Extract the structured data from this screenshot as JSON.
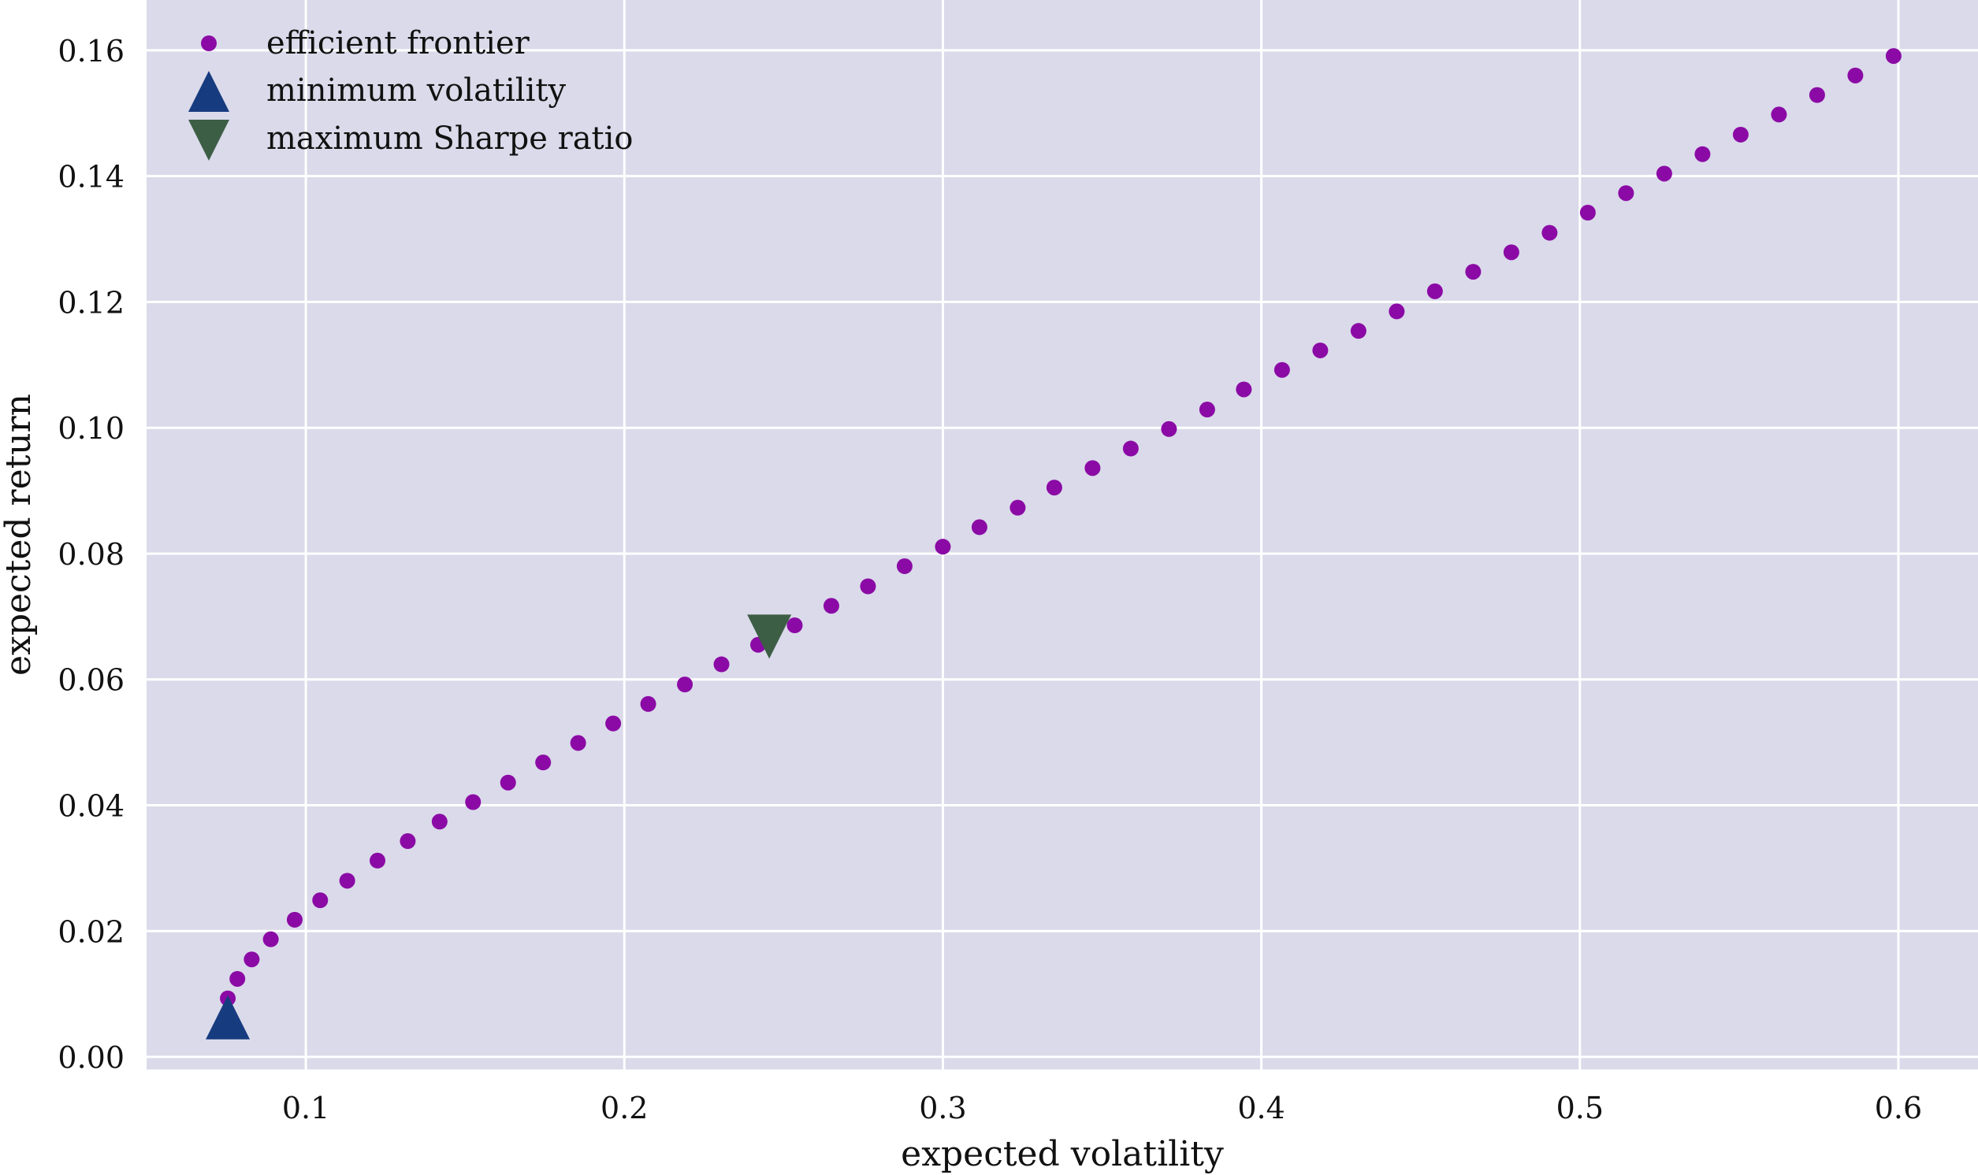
{
  "chart_data": {
    "type": "scatter",
    "title": "",
    "xlabel": "expected volatility",
    "ylabel": "expected return",
    "xlim": [
      0.05,
      0.625
    ],
    "ylim": [
      -0.002,
      0.168
    ],
    "xticks": [
      0.1,
      0.2,
      0.3,
      0.4,
      0.5,
      0.6
    ],
    "xtick_labels": [
      "0.1",
      "0.2",
      "0.3",
      "0.4",
      "0.5",
      "0.6"
    ],
    "yticks": [
      0.0,
      0.02,
      0.04,
      0.06,
      0.08,
      0.1,
      0.12,
      0.14,
      0.16
    ],
    "ytick_labels": [
      "0.00",
      "0.02",
      "0.04",
      "0.06",
      "0.08",
      "0.10",
      "0.12",
      "0.14",
      "0.16"
    ],
    "grid": true,
    "legend_position": "top-left",
    "colors": {
      "background": "#dadaea",
      "grid": "#ffffff",
      "frontier": "#8b0aa5",
      "min_vol": "#173b7f",
      "max_sharpe": "#3c5e45"
    },
    "series": [
      {
        "name": "efficient frontier",
        "marker": "circle",
        "points": [
          [
            0.0755,
            0.0093
          ],
          [
            0.0785,
            0.0124
          ],
          [
            0.083,
            0.0155
          ],
          [
            0.089,
            0.0187
          ],
          [
            0.0965,
            0.0218
          ],
          [
            0.1045,
            0.0249
          ],
          [
            0.113,
            0.028
          ],
          [
            0.1225,
            0.0312
          ],
          [
            0.132,
            0.0343
          ],
          [
            0.142,
            0.0374
          ],
          [
            0.1525,
            0.0405
          ],
          [
            0.1635,
            0.0436
          ],
          [
            0.1745,
            0.0468
          ],
          [
            0.1855,
            0.0499
          ],
          [
            0.1965,
            0.053
          ],
          [
            0.2075,
            0.0561
          ],
          [
            0.219,
            0.0592
          ],
          [
            0.2305,
            0.0624
          ],
          [
            0.242,
            0.0655
          ],
          [
            0.2535,
            0.0686
          ],
          [
            0.265,
            0.0717
          ],
          [
            0.2765,
            0.0748
          ],
          [
            0.288,
            0.078
          ],
          [
            0.3,
            0.0811
          ],
          [
            0.3115,
            0.0842
          ],
          [
            0.3235,
            0.0873
          ],
          [
            0.335,
            0.0905
          ],
          [
            0.347,
            0.0936
          ],
          [
            0.359,
            0.0967
          ],
          [
            0.371,
            0.0998
          ],
          [
            0.383,
            0.1029
          ],
          [
            0.3945,
            0.1061
          ],
          [
            0.4065,
            0.1092
          ],
          [
            0.4185,
            0.1123
          ],
          [
            0.4305,
            0.1154
          ],
          [
            0.4425,
            0.1185
          ],
          [
            0.4545,
            0.1217
          ],
          [
            0.4665,
            0.1248
          ],
          [
            0.4785,
            0.1279
          ],
          [
            0.4905,
            0.131
          ],
          [
            0.5025,
            0.1342
          ],
          [
            0.5145,
            0.1373
          ],
          [
            0.5265,
            0.1404
          ],
          [
            0.5385,
            0.1435
          ],
          [
            0.5505,
            0.1466
          ],
          [
            0.5625,
            0.1498
          ],
          [
            0.5745,
            0.1529
          ],
          [
            0.5865,
            0.156
          ],
          [
            0.5985,
            0.1591
          ]
        ]
      },
      {
        "name": "minimum volatility",
        "marker": "triangle-up",
        "points": [
          [
            0.0755,
            0.0063
          ]
        ]
      },
      {
        "name": "maximum Sharpe ratio",
        "marker": "triangle-down",
        "points": [
          [
            0.2455,
            0.0668
          ]
        ]
      }
    ]
  }
}
